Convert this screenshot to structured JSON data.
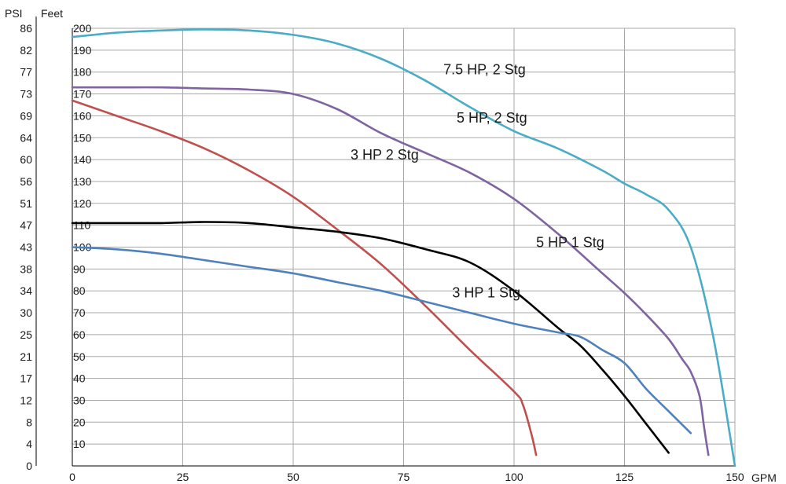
{
  "chart_data": {
    "type": "line",
    "x_unit": "GPM",
    "y_units": [
      "PSI",
      "Feet"
    ],
    "xlim": [
      0,
      150
    ],
    "ylim": [
      0,
      200
    ],
    "grid": true,
    "x_ticks": [
      "0",
      "25",
      "50",
      "75",
      "100",
      "125",
      "150"
    ],
    "feet_ticks": [
      "10",
      "20",
      "30",
      "40",
      "50",
      "60",
      "70",
      "80",
      "90",
      "100",
      "110",
      "120",
      "130",
      "140",
      "150",
      "160",
      "170",
      "180",
      "190",
      "200"
    ],
    "psi_ticks": [
      "0",
      "4",
      "8",
      "12",
      "17",
      "21",
      "25",
      "30",
      "34",
      "38",
      "43",
      "47",
      "51",
      "56",
      "60",
      "64",
      "69",
      "73",
      "77",
      "82",
      "86"
    ],
    "series": [
      {
        "name": "7.5 HP, 2 Stg",
        "color": "#4aacc5",
        "label_at": [
          84,
          179
        ],
        "points": [
          [
            0,
            196
          ],
          [
            10,
            198
          ],
          [
            20,
            199
          ],
          [
            30,
            199.5
          ],
          [
            40,
            199
          ],
          [
            50,
            197
          ],
          [
            60,
            193
          ],
          [
            70,
            186
          ],
          [
            80,
            176
          ],
          [
            90,
            164
          ],
          [
            100,
            153
          ],
          [
            110,
            145
          ],
          [
            120,
            135
          ],
          [
            125,
            129
          ],
          [
            130,
            124
          ],
          [
            135,
            117
          ],
          [
            140,
            100
          ],
          [
            145,
            60
          ],
          [
            150,
            0
          ]
        ]
      },
      {
        "name": "5 HP, 2 Stg",
        "color": "#8064a2",
        "label_at": [
          87,
          157
        ],
        "points": [
          [
            0,
            173
          ],
          [
            10,
            173
          ],
          [
            20,
            173
          ],
          [
            30,
            172.5
          ],
          [
            40,
            172
          ],
          [
            50,
            170
          ],
          [
            60,
            163
          ],
          [
            70,
            152
          ],
          [
            80,
            143
          ],
          [
            90,
            134
          ],
          [
            100,
            122
          ],
          [
            110,
            106
          ],
          [
            120,
            88
          ],
          [
            125,
            79
          ],
          [
            130,
            69
          ],
          [
            135,
            58
          ],
          [
            138,
            49
          ],
          [
            140,
            43
          ],
          [
            142,
            32
          ],
          [
            143,
            18
          ],
          [
            144,
            5
          ]
        ]
      },
      {
        "name": "3 HP 2 Stg",
        "color": "#c0504d",
        "label_at": [
          63,
          140
        ],
        "points": [
          [
            0,
            167
          ],
          [
            10,
            160
          ],
          [
            20,
            153
          ],
          [
            30,
            145
          ],
          [
            40,
            135
          ],
          [
            50,
            123
          ],
          [
            60,
            108
          ],
          [
            70,
            92
          ],
          [
            80,
            73
          ],
          [
            90,
            53
          ],
          [
            100,
            34
          ],
          [
            102,
            28
          ],
          [
            104,
            14
          ],
          [
            105,
            5
          ]
        ]
      },
      {
        "name": "5 HP 1 Stg",
        "color": "#000000",
        "label_at": [
          105,
          100
        ],
        "points": [
          [
            0,
            111
          ],
          [
            10,
            111
          ],
          [
            20,
            111
          ],
          [
            30,
            111.5
          ],
          [
            40,
            111
          ],
          [
            50,
            109
          ],
          [
            60,
            107
          ],
          [
            70,
            104
          ],
          [
            80,
            99
          ],
          [
            90,
            93
          ],
          [
            100,
            80
          ],
          [
            110,
            63
          ],
          [
            115,
            55
          ],
          [
            120,
            44
          ],
          [
            125,
            32
          ],
          [
            130,
            19
          ],
          [
            135,
            6
          ]
        ]
      },
      {
        "name": "3 HP 1 Stg",
        "color": "#4f81bd",
        "label_at": [
          86,
          77
        ],
        "points": [
          [
            0,
            100
          ],
          [
            10,
            99
          ],
          [
            20,
            97
          ],
          [
            30,
            94
          ],
          [
            40,
            91
          ],
          [
            50,
            88
          ],
          [
            60,
            84
          ],
          [
            70,
            80
          ],
          [
            80,
            75
          ],
          [
            90,
            70
          ],
          [
            100,
            65
          ],
          [
            110,
            61
          ],
          [
            115,
            59
          ],
          [
            120,
            53
          ],
          [
            125,
            47
          ],
          [
            130,
            35
          ],
          [
            135,
            25
          ],
          [
            140,
            15
          ]
        ]
      }
    ]
  }
}
